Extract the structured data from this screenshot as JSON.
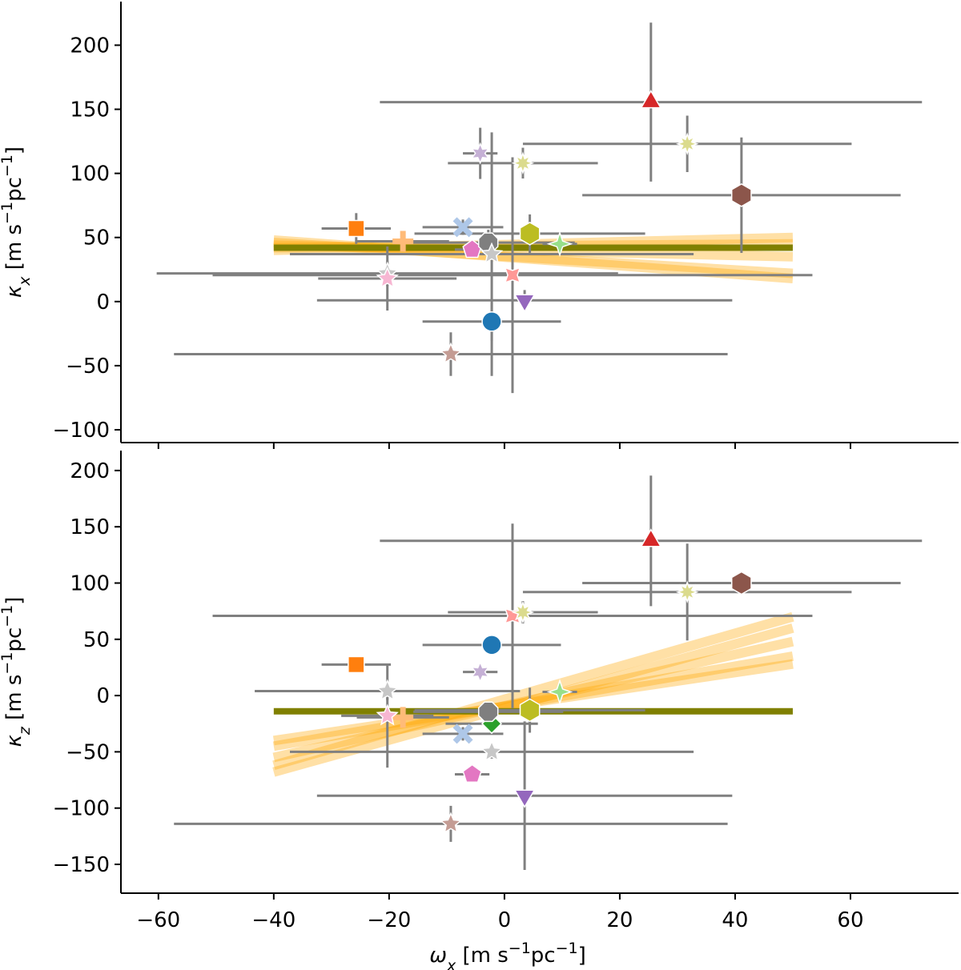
{
  "chart_data": [
    {
      "type": "scatter",
      "ylabel": [
        "κ",
        "x",
        " [m s",
        "−1",
        "pc",
        "−1",
        "]"
      ],
      "xlim": [
        -66.5,
        78.75
      ],
      "xticks": [
        -60,
        -40,
        -20,
        0,
        20,
        40,
        60
      ],
      "ylim": [
        -110,
        234
      ],
      "yticks": [
        {
          "value": -100,
          "label": "−100"
        },
        {
          "value": -50,
          "label": "−50"
        },
        0,
        50,
        100,
        150,
        200
      ],
      "fits": [
        {
          "color": "#ffa500",
          "x": [
            -40,
            50
          ],
          "y": [
            46,
            22
          ]
        },
        {
          "color": "#ffa500",
          "x": [
            -40,
            50
          ],
          "y": [
            44,
            35
          ]
        },
        {
          "color": "#ffa500",
          "x": [
            -40,
            50
          ],
          "y": [
            42,
            45
          ]
        },
        {
          "color": "#ffa500",
          "x": [
            -40,
            50
          ],
          "y": [
            48,
            18
          ]
        },
        {
          "color": "#ffa500",
          "x": [
            -40,
            50
          ],
          "y": [
            40,
            50
          ]
        },
        {
          "color": "#808000",
          "x": [
            -40,
            50
          ],
          "y": [
            42,
            42
          ]
        }
      ],
      "points": [
        {
          "marker": "circle",
          "color": "#1f77b4",
          "x": -2.2,
          "xerr": 12,
          "y": -15.6,
          "yerr": 15
        },
        {
          "marker": "square",
          "color": "#ff7f0e",
          "x": -25.7,
          "xerr": 6,
          "y": 57,
          "yerr": 12
        },
        {
          "marker": "triangle",
          "color": "#d62728",
          "x": 25.4,
          "xerr": 47,
          "y": 155.6,
          "yerr": 62
        },
        {
          "marker": "triangle-down",
          "color": "#9467bd",
          "x": 3.5,
          "xerr": 36,
          "y": 1,
          "yerr": 8
        },
        {
          "marker": "hexagon",
          "color": "#8c564b",
          "x": 41.1,
          "xerr": 27.6,
          "y": 83,
          "yerr": 45
        },
        {
          "marker": "pentagon",
          "color": "#e377c2",
          "x": -5.6,
          "xerr": 3,
          "y": 40.6,
          "yerr": 6
        },
        {
          "marker": "octagon",
          "color": "#7f7f7f",
          "x": -2.8,
          "xerr": 15,
          "y": 46,
          "yerr": 10
        },
        {
          "marker": "hexagon",
          "color": "#bcbd22",
          "x": 4.4,
          "xerr": 20,
          "y": 53,
          "yerr": 15
        },
        {
          "marker": "x",
          "color": "#aec7e8",
          "x": -7.2,
          "xerr": 7,
          "y": 58,
          "yerr": 6
        },
        {
          "marker": "plus",
          "color": "#ffbb78",
          "x": -17.6,
          "xerr": 8,
          "y": 47,
          "yerr": 6
        },
        {
          "marker": "star4",
          "color": "#98df8a",
          "x": 9.6,
          "xerr": 3,
          "y": 45,
          "yerr": 6
        },
        {
          "marker": "star4x",
          "color": "#ff9896",
          "x": 1.4,
          "xerr": 52,
          "y": 20.6,
          "yerr": 92
        },
        {
          "marker": "star5",
          "color": "#c7c7c7",
          "x": -20.3,
          "xerr": 40,
          "y": 22,
          "yerr": 10
        },
        {
          "marker": "star5",
          "color": "#f7b6d2",
          "x": -20.3,
          "xerr": 12,
          "y": 18,
          "yerr": 25
        },
        {
          "marker": "star5",
          "color": "#c7c7c7",
          "x": -2.2,
          "xerr": 35,
          "y": 37,
          "yerr": 95
        },
        {
          "marker": "star6",
          "color": "#c5b0d5",
          "x": -4.2,
          "xerr": 3,
          "y": 115.6,
          "yerr": 20
        },
        {
          "marker": "star8",
          "color": "#dbdb8d",
          "x": 3.2,
          "xerr": 13,
          "y": 108,
          "yerr": 12
        },
        {
          "marker": "star8",
          "color": "#dbdb8d",
          "x": 31.7,
          "xerr": 28.5,
          "y": 123,
          "yerr": 22
        },
        {
          "marker": "star5",
          "color": "#c49c94",
          "x": -9.3,
          "xerr": 48,
          "y": -41,
          "yerr": 17
        }
      ]
    },
    {
      "type": "scatter",
      "xlabel": [
        "ω",
        "x",
        " [m s",
        "−1",
        "pc",
        "−1",
        "]"
      ],
      "ylabel": [
        "κ",
        "z",
        " [m s",
        "−1",
        "pc",
        "−1",
        "]"
      ],
      "xlim": [
        -66.5,
        78.75
      ],
      "xticks": [
        {
          "value": -60,
          "label": "−60"
        },
        {
          "value": -40,
          "label": "−40"
        },
        {
          "value": -20,
          "label": "−20"
        },
        0,
        20,
        40,
        60
      ],
      "ylim": [
        -175.6,
        217.7
      ],
      "yticks": [
        {
          "value": -150,
          "label": "−150"
        },
        {
          "value": -100,
          "label": "−100"
        },
        {
          "value": -50,
          "label": "−50"
        },
        0,
        50,
        100,
        150,
        200
      ],
      "fits": [
        {
          "color": "#ffa500",
          "x": [
            -40,
            50
          ],
          "y": [
            -55,
            48
          ]
        },
        {
          "color": "#ffa500",
          "x": [
            -40,
            50
          ],
          "y": [
            -45,
            35
          ]
        },
        {
          "color": "#ffa500",
          "x": [
            -40,
            50
          ],
          "y": [
            -68,
            60
          ]
        },
        {
          "color": "#ffa500",
          "x": [
            -40,
            50
          ],
          "y": [
            -40,
            28
          ]
        },
        {
          "color": "#ffa500",
          "x": [
            -40,
            50
          ],
          "y": [
            -62,
            70
          ]
        },
        {
          "color": "#808000",
          "x": [
            -40,
            50
          ],
          "y": [
            -14,
            -14
          ]
        }
      ],
      "points": [
        {
          "marker": "circle",
          "color": "#1f77b4",
          "x": -2.2,
          "xerr": 12,
          "y": 45,
          "yerr": 8
        },
        {
          "marker": "square",
          "color": "#ff7f0e",
          "x": -25.7,
          "xerr": 6,
          "y": 27.5,
          "yerr": 4
        },
        {
          "marker": "diamond",
          "color": "#2ca02c",
          "x": -2.2,
          "xerr": 8,
          "y": -25,
          "yerr": 6
        },
        {
          "marker": "triangle",
          "color": "#d62728",
          "x": 25.4,
          "xerr": 47,
          "y": 137.5,
          "yerr": 58
        },
        {
          "marker": "triangle-down",
          "color": "#9467bd",
          "x": 3.5,
          "xerr": 36,
          "y": -89,
          "yerr": 66
        },
        {
          "marker": "hexagon",
          "color": "#8c564b",
          "x": 41.1,
          "xerr": 27.6,
          "y": 100,
          "yerr": 10
        },
        {
          "marker": "pentagon",
          "color": "#e377c2",
          "x": -5.6,
          "xerr": 3,
          "y": -70,
          "yerr": 5
        },
        {
          "marker": "octagon",
          "color": "#7f7f7f",
          "x": -2.8,
          "xerr": 13,
          "y": -14.4,
          "yerr": 8
        },
        {
          "marker": "hexagon",
          "color": "#bcbd22",
          "x": 4.4,
          "xerr": 20,
          "y": -13,
          "yerr": 20
        },
        {
          "marker": "x",
          "color": "#aec7e8",
          "x": -7.2,
          "xerr": 7,
          "y": -34,
          "yerr": 6
        },
        {
          "marker": "plus",
          "color": "#ffbb78",
          "x": -17.6,
          "xerr": 8,
          "y": -19.4,
          "yerr": 6
        },
        {
          "marker": "star4",
          "color": "#98df8a",
          "x": 9.6,
          "xerr": 3,
          "y": 3.3,
          "yerr": 5
        },
        {
          "marker": "star4x",
          "color": "#ff9896",
          "x": 1.4,
          "xerr": 52,
          "y": 70.8,
          "yerr": 82
        },
        {
          "marker": "star5",
          "color": "#c7c7c7",
          "x": -20.3,
          "xerr": 23,
          "y": 4,
          "yerr": 8
        },
        {
          "marker": "star5",
          "color": "#f7b6d2",
          "x": -20.3,
          "xerr": 8,
          "y": -18,
          "yerr": 46
        },
        {
          "marker": "star5",
          "color": "#c7c7c7",
          "x": -2.2,
          "xerr": 35,
          "y": -50,
          "yerr": 6
        },
        {
          "marker": "star6",
          "color": "#c5b0d5",
          "x": -4.2,
          "xerr": 3,
          "y": 21,
          "yerr": 4
        },
        {
          "marker": "star8",
          "color": "#dbdb8d",
          "x": 3.2,
          "xerr": 13,
          "y": 74,
          "yerr": 10
        },
        {
          "marker": "star8",
          "color": "#dbdb8d",
          "x": 31.7,
          "xerr": 28.5,
          "y": 92,
          "yerr": 43
        },
        {
          "marker": "star5",
          "color": "#c49c94",
          "x": -9.3,
          "xerr": 48,
          "y": -114,
          "yerr": 16
        }
      ]
    }
  ]
}
